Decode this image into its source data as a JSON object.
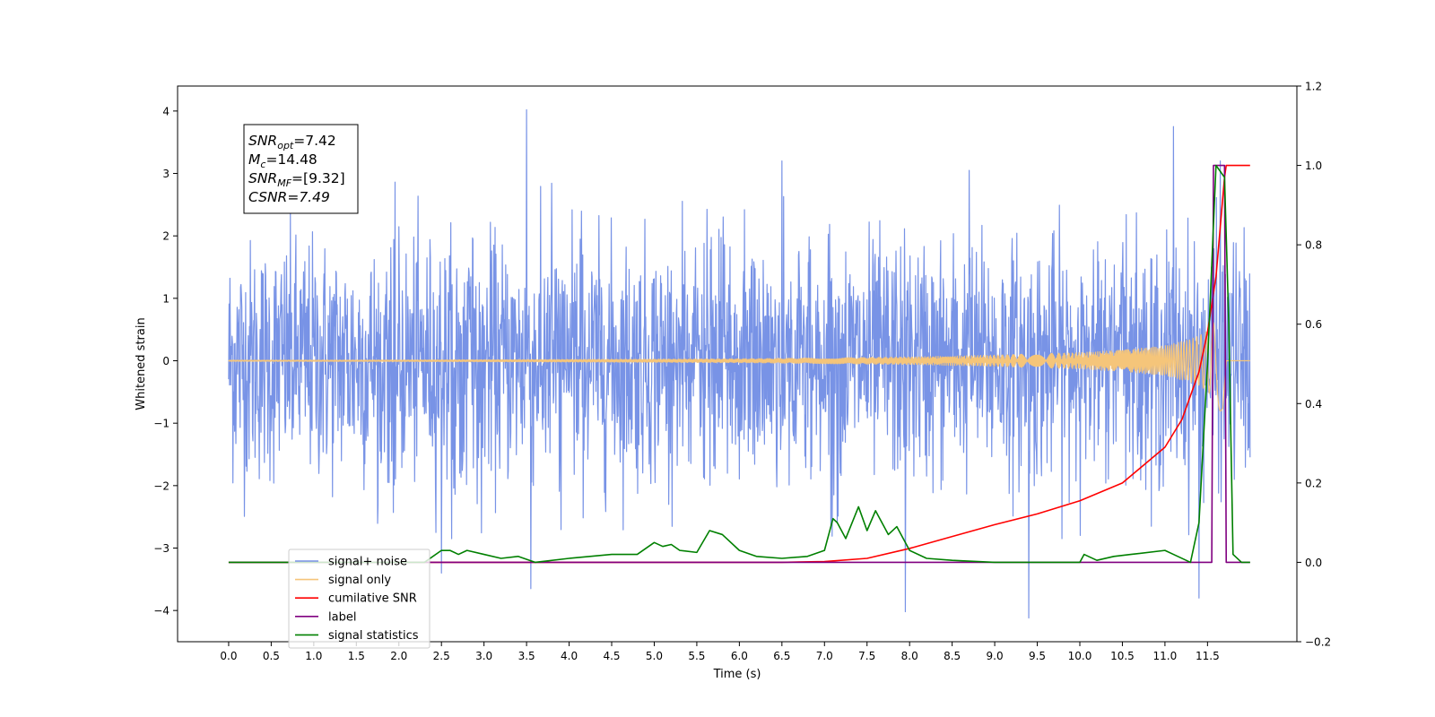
{
  "chart_data": {
    "type": "line",
    "title": "",
    "xlabel": "Time (s)",
    "ylabel": "Whitened strain",
    "y2label": "",
    "xlim": [
      -0.6,
      12.55
    ],
    "ylim": [
      -4.5,
      4.4
    ],
    "y2lim": [
      -0.2,
      1.2
    ],
    "grid": false,
    "legend_position": "lower-left",
    "x_ticks": [
      0.0,
      0.5,
      1.0,
      1.5,
      2.0,
      2.5,
      3.0,
      3.5,
      4.0,
      4.5,
      5.0,
      5.5,
      6.0,
      6.5,
      7.0,
      7.5,
      8.0,
      8.5,
      9.0,
      9.5,
      10.0,
      10.5,
      11.0,
      11.5
    ],
    "x_tick_labels": [
      "0.0",
      "0.5",
      "1.0",
      "1.5",
      "2.0",
      "2.5",
      "3.0",
      "3.5",
      "4.0",
      "4.5",
      "5.0",
      "5.5",
      "6.0",
      "6.5",
      "7.0",
      "7.5",
      "8.0",
      "8.5",
      "9.0",
      "9.5",
      "10.0",
      "10.5",
      "11.0",
      "11.5"
    ],
    "y_ticks": [
      4,
      3,
      2,
      1,
      0,
      -1,
      -2,
      -3,
      -4
    ],
    "y_tick_labels": [
      "4",
      "3",
      "2",
      "1",
      "0",
      "−1",
      "−2",
      "−3",
      "−4"
    ],
    "y2_ticks": [
      1.2,
      1.0,
      0.8,
      0.6,
      0.4,
      0.2,
      0.0,
      -0.2
    ],
    "y2_tick_labels": [
      "1.2",
      "1.0",
      "0.8",
      "0.6",
      "0.4",
      "0.2",
      "0.0",
      "−0.2"
    ],
    "annotation": {
      "lines": [
        {
          "base": "SNR",
          "sub": "opt",
          "rest": "=7.42"
        },
        {
          "base": "M",
          "sub": "c",
          "rest": "=14.48"
        },
        {
          "base": "SNR",
          "sub": "MF",
          "rest": "=[9.32]"
        },
        {
          "base": "CSNR",
          "sub": "",
          "rest": "=7.49"
        }
      ]
    },
    "series": [
      {
        "name": "signal+ noise",
        "color": "#7893e6",
        "axis": "left",
        "x_range": [
          0.0,
          12.0
        ],
        "std": 0.95,
        "envelope_y": 2.3,
        "notable_peaks": [
          [
            3.5,
            4.02
          ],
          [
            11.65,
            3.2
          ],
          [
            11.1,
            3.75
          ],
          [
            9.4,
            -4.12
          ],
          [
            7.95,
            -4.02
          ],
          [
            11.4,
            -3.8
          ],
          [
            3.55,
            -3.65
          ],
          [
            6.5,
            3.2
          ],
          [
            8.7,
            3.05
          ],
          [
            2.5,
            -3.4
          ]
        ]
      },
      {
        "name": "signal only",
        "color": "#f5c57a",
        "axis": "left",
        "x": [
          0.0,
          2.0,
          4.0,
          6.0,
          7.0,
          8.0,
          9.0,
          10.0,
          10.5,
          11.0,
          11.3,
          11.5,
          11.62,
          11.68,
          11.72,
          12.0
        ],
        "amplitude": [
          0.01,
          0.012,
          0.02,
          0.03,
          0.045,
          0.06,
          0.09,
          0.13,
          0.17,
          0.24,
          0.34,
          0.48,
          0.72,
          0.9,
          0.0,
          0.0
        ]
      },
      {
        "name": "cumilative SNR",
        "color": "#ff0000",
        "axis": "right",
        "x": [
          0.0,
          6.5,
          7.0,
          7.5,
          8.0,
          8.5,
          9.0,
          9.5,
          10.0,
          10.5,
          11.0,
          11.2,
          11.4,
          11.5,
          11.6,
          11.7,
          11.72,
          12.0
        ],
        "y": [
          0.0,
          0.0,
          0.002,
          0.01,
          0.035,
          0.065,
          0.095,
          0.122,
          0.155,
          0.2,
          0.29,
          0.36,
          0.48,
          0.58,
          0.72,
          0.97,
          1.0,
          1.0
        ]
      },
      {
        "name": "label",
        "color": "#800080",
        "axis": "right",
        "x": [
          0.0,
          11.55,
          11.57,
          11.7,
          11.72,
          12.0
        ],
        "y": [
          0.0,
          0.0,
          1.0,
          1.0,
          0.0,
          0.0
        ]
      },
      {
        "name": "signal statistics",
        "color": "#008000",
        "axis": "right",
        "x": [
          0.0,
          2.3,
          2.5,
          2.6,
          2.7,
          2.8,
          3.0,
          3.2,
          3.4,
          3.6,
          4.0,
          4.5,
          4.8,
          5.0,
          5.1,
          5.2,
          5.3,
          5.5,
          5.65,
          5.8,
          6.0,
          6.2,
          6.5,
          6.8,
          7.0,
          7.1,
          7.15,
          7.25,
          7.4,
          7.5,
          7.6,
          7.75,
          7.85,
          8.0,
          8.2,
          8.5,
          9.0,
          9.5,
          10.0,
          10.05,
          10.2,
          10.4,
          10.6,
          11.0,
          11.1,
          11.3,
          11.4,
          11.5,
          11.6,
          11.7,
          11.75,
          11.8,
          11.9,
          12.0
        ],
        "y": [
          0.0,
          0.0,
          0.03,
          0.03,
          0.02,
          0.03,
          0.02,
          0.01,
          0.015,
          0.0,
          0.01,
          0.02,
          0.02,
          0.05,
          0.04,
          0.045,
          0.03,
          0.025,
          0.08,
          0.07,
          0.03,
          0.015,
          0.01,
          0.015,
          0.03,
          0.11,
          0.1,
          0.06,
          0.14,
          0.08,
          0.13,
          0.07,
          0.09,
          0.03,
          0.01,
          0.005,
          0.0,
          0.0,
          0.0,
          0.02,
          0.005,
          0.015,
          0.02,
          0.03,
          0.02,
          0.0,
          0.1,
          0.5,
          1.0,
          0.97,
          0.6,
          0.02,
          0.0,
          0.0
        ]
      }
    ],
    "legend_entries": [
      "signal+ noise",
      "signal only",
      "cumilative SNR",
      "label",
      "signal statistics"
    ]
  }
}
